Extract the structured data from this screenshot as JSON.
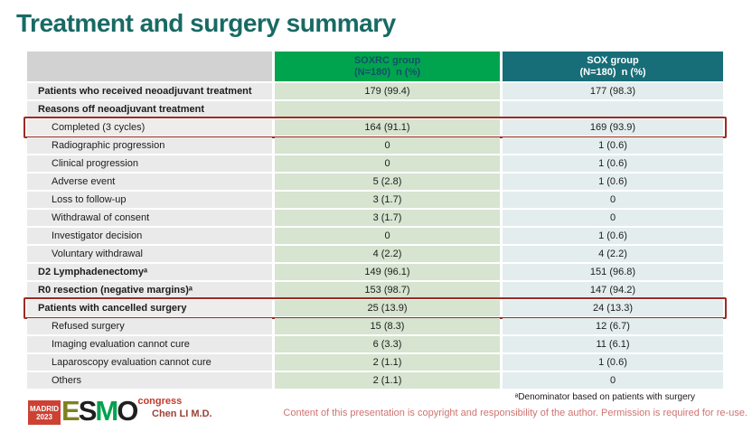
{
  "title": "Treatment and surgery summary",
  "colors": {
    "title_text": "#186a64",
    "soxrc_header_bg": "#00a44e",
    "soxrc_header_text": "#14506b",
    "sox_header_bg": "#176e78",
    "sox_header_text": "#ffffff",
    "label_cell_bg": "#eaeaea",
    "soxrc_cell_bg": "#d6e4d0",
    "sox_cell_bg": "#e3edee",
    "highlight_border": "#9b2c24",
    "copyright_text": "#cf7470",
    "presenter_text": "#9c4136",
    "logo_red": "#cd4134"
  },
  "table": {
    "columns": [
      {
        "label": "SOXRC group",
        "sublabel": "(N=180)  n (%)"
      },
      {
        "label": "SOX group",
        "sublabel": "(N=180)  n (%)"
      }
    ],
    "rows": [
      {
        "label": "Patients who received neoadjuvant treatment",
        "soxrc": "179 (99.4)",
        "sox": "177 (98.3)",
        "bold": true,
        "indent": false,
        "highlight": false
      },
      {
        "label": "Reasons off neoadjuvant treatment",
        "soxrc": "",
        "sox": "",
        "bold": true,
        "indent": false,
        "highlight": false
      },
      {
        "label": "Completed (3 cycles)",
        "soxrc": "164 (91.1)",
        "sox": "169 (93.9)",
        "bold": false,
        "indent": true,
        "highlight": true
      },
      {
        "label": "Radiographic progression",
        "soxrc": "0",
        "sox": "1 (0.6)",
        "bold": false,
        "indent": true,
        "highlight": false
      },
      {
        "label": "Clinical progression",
        "soxrc": "0",
        "sox": "1 (0.6)",
        "bold": false,
        "indent": true,
        "highlight": false
      },
      {
        "label": "Adverse event",
        "soxrc": "5 (2.8)",
        "sox": "1 (0.6)",
        "bold": false,
        "indent": true,
        "highlight": false
      },
      {
        "label": "Loss to follow-up",
        "soxrc": "3 (1.7)",
        "sox": "0",
        "bold": false,
        "indent": true,
        "highlight": false
      },
      {
        "label": "Withdrawal of consent",
        "soxrc": "3 (1.7)",
        "sox": "0",
        "bold": false,
        "indent": true,
        "highlight": false
      },
      {
        "label": "Investigator decision",
        "soxrc": "0",
        "sox": "1 (0.6)",
        "bold": false,
        "indent": true,
        "highlight": false
      },
      {
        "label": "Voluntary withdrawal",
        "soxrc": "4 (2.2)",
        "sox": "4 (2.2)",
        "bold": false,
        "indent": true,
        "highlight": false
      },
      {
        "label": "D2 Lymphadenectomyᵃ",
        "soxrc": "149 (96.1)",
        "sox": "151 (96.8)",
        "bold": true,
        "indent": false,
        "highlight": false
      },
      {
        "label": "R0 resection (negative margins)ᵃ",
        "soxrc": "153 (98.7)",
        "sox": "147 (94.2)",
        "bold": true,
        "indent": false,
        "highlight": false
      },
      {
        "label": "Patients with cancelled surgery",
        "soxrc": "25 (13.9)",
        "sox": "24 (13.3)",
        "bold": true,
        "indent": false,
        "highlight": true
      },
      {
        "label": "Refused surgery",
        "soxrc": "15 (8.3)",
        "sox": "12 (6.7)",
        "bold": false,
        "indent": true,
        "highlight": false
      },
      {
        "label": "Imaging evaluation cannot cure",
        "soxrc": "6 (3.3)",
        "sox": "11 (6.1)",
        "bold": false,
        "indent": true,
        "highlight": false
      },
      {
        "label": "Laparoscopy evaluation cannot cure",
        "soxrc": "2 (1.1)",
        "sox": "1 (0.6)",
        "bold": false,
        "indent": true,
        "highlight": false
      },
      {
        "label": "Others",
        "soxrc": "2 (1.1)",
        "sox": "0",
        "bold": false,
        "indent": true,
        "highlight": false
      }
    ]
  },
  "footer": {
    "logo": {
      "venue": "MADRID",
      "year": "2023",
      "letters": [
        "E",
        "S",
        "M",
        "O"
      ],
      "congress": "congress"
    },
    "presenter": "Chen LI M.D.",
    "footnote": "ᵃDenominator based on patients with surgery",
    "copyright": "Content of this presentation is copyright and responsibility of the author. Permission is required for re-use."
  }
}
